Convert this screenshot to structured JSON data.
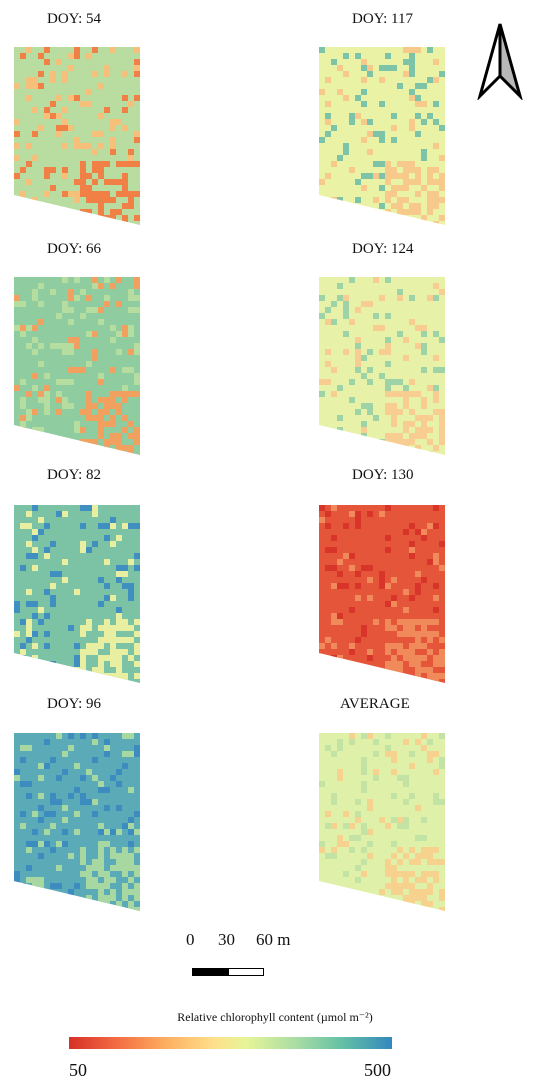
{
  "panels": [
    {
      "id": "doy54",
      "title": "DOY: 54",
      "base": "#b9dca0",
      "hot": "#f08045",
      "accent": "#f6c07a"
    },
    {
      "id": "doy117",
      "title": "DOY: 117",
      "base": "#eaf2a6",
      "hot": "#f7c98a",
      "accent": "#7cc3a8"
    },
    {
      "id": "doy66",
      "title": "DOY: 66",
      "base": "#8fcca0",
      "hot": "#f2a060",
      "accent": "#b6dda0"
    },
    {
      "id": "doy124",
      "title": "DOY: 124",
      "base": "#e8f1a8",
      "hot": "#f8cd92",
      "accent": "#9ed3a8"
    },
    {
      "id": "doy82",
      "title": "DOY: 82",
      "base": "#7cc2a4",
      "hot": "#e9efa0",
      "accent": "#3f8fc0"
    },
    {
      "id": "doy130",
      "title": "DOY: 130",
      "base": "#e4553a",
      "hot": "#f08a5a",
      "accent": "#d8342a"
    },
    {
      "id": "doy96",
      "title": "DOY: 96",
      "base": "#5aaab8",
      "hot": "#a8d8a2",
      "accent": "#3d8cc0"
    },
    {
      "id": "average",
      "title": "AVERAGE",
      "base": "#dff0a8",
      "hot": "#f6d28e",
      "accent": "#c2e3a4"
    }
  ],
  "scale": {
    "tick0": "0",
    "tick1": "30",
    "tick2": "60 m"
  },
  "legend": {
    "title": "Relative chlorophyll content  (µmol m⁻²)",
    "min": "50",
    "max": "500"
  },
  "north_arrow_icon": "north-arrow-icon"
}
